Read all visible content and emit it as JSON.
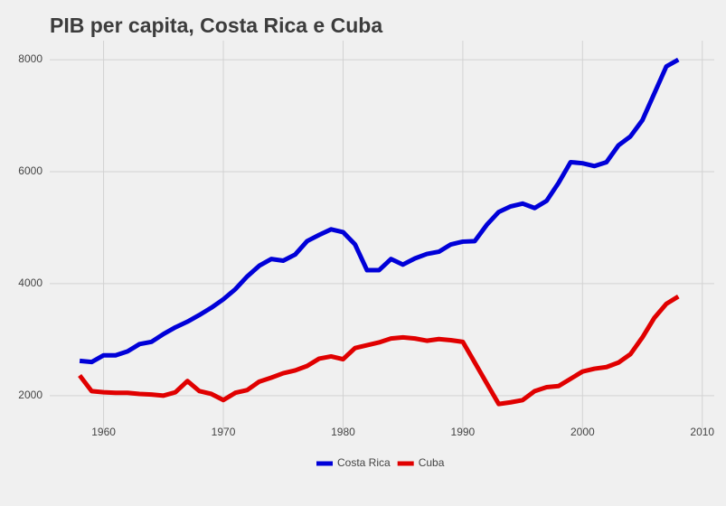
{
  "chart_data": {
    "type": "line",
    "title": "PIB per capita, Costa Rica e Cuba",
    "x": [
      1958,
      1959,
      1960,
      1961,
      1962,
      1963,
      1964,
      1965,
      1966,
      1967,
      1968,
      1969,
      1970,
      1971,
      1972,
      1973,
      1974,
      1975,
      1976,
      1977,
      1978,
      1979,
      1980,
      1981,
      1982,
      1983,
      1984,
      1985,
      1986,
      1987,
      1988,
      1989,
      1990,
      1991,
      1992,
      1993,
      1994,
      1995,
      1996,
      1997,
      1998,
      1999,
      2000,
      2001,
      2002,
      2003,
      2004,
      2005,
      2006,
      2007,
      2008
    ],
    "series": [
      {
        "name": "Costa Rica",
        "color": "#0000d8",
        "values": [
          2620,
          2600,
          2720,
          2720,
          2790,
          2920,
          2960,
          3100,
          3220,
          3320,
          3440,
          3570,
          3720,
          3900,
          4130,
          4320,
          4440,
          4410,
          4520,
          4760,
          4870,
          4970,
          4920,
          4700,
          4240,
          4240,
          4440,
          4340,
          4450,
          4530,
          4570,
          4700,
          4750,
          4760,
          5050,
          5280,
          5380,
          5430,
          5350,
          5480,
          5800,
          6170,
          6150,
          6100,
          6170,
          6470,
          6630,
          6920,
          7400,
          7880,
          8000
        ]
      },
      {
        "name": "Cuba",
        "color": "#e00000",
        "values": [
          2360,
          2080,
          2060,
          2050,
          2050,
          2030,
          2020,
          2000,
          2060,
          2260,
          2080,
          2030,
          1920,
          2050,
          2100,
          2250,
          2320,
          2400,
          2450,
          2530,
          2660,
          2700,
          2650,
          2850,
          2900,
          2950,
          3020,
          3040,
          3020,
          2980,
          3010,
          2990,
          2960,
          2590,
          2220,
          1850,
          1880,
          1920,
          2080,
          2150,
          2170,
          2300,
          2430,
          2480,
          2510,
          2590,
          2740,
          3040,
          3390,
          3640,
          3770
        ]
      }
    ],
    "xlim": [
      1955.5,
      2011
    ],
    "xticks": [
      1960,
      1970,
      1980,
      1990,
      2000,
      2010
    ],
    "ylim": [
      1400,
      8340
    ],
    "yticks": [
      2000,
      4000,
      6000,
      8000
    ],
    "grid": true,
    "legend": "bottom"
  }
}
